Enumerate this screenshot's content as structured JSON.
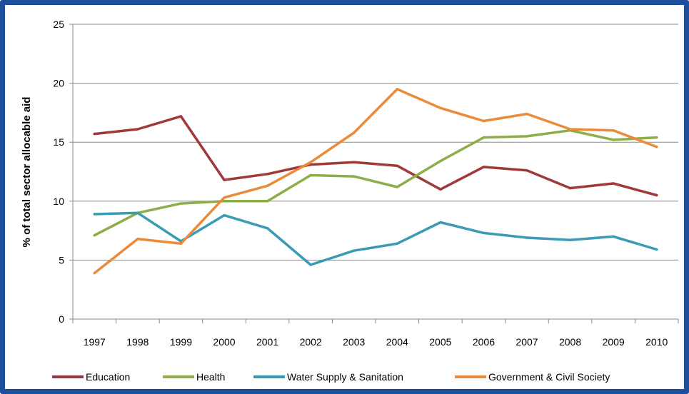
{
  "chart_data": {
    "type": "line",
    "title": "",
    "xlabel": "",
    "ylabel": "% of total sector allocable aid",
    "ylim": [
      0,
      25
    ],
    "yticks": [
      0,
      5,
      10,
      15,
      20,
      25
    ],
    "grid": "horizontal",
    "legend": "bottom",
    "x": [
      "1997",
      "1998",
      "1999",
      "2000",
      "2001",
      "2002",
      "2003",
      "2004",
      "2005",
      "2006",
      "2007",
      "2008",
      "2009",
      "2010"
    ],
    "series": [
      {
        "name": "Education",
        "color": "#a0393a",
        "values": [
          15.7,
          16.1,
          17.2,
          11.8,
          12.3,
          13.1,
          13.3,
          13.0,
          11.0,
          12.9,
          12.6,
          11.1,
          11.5,
          10.5
        ]
      },
      {
        "name": "Health",
        "color": "#8cad47",
        "values": [
          7.1,
          9.0,
          9.8,
          10.0,
          10.0,
          12.2,
          12.1,
          11.2,
          13.4,
          15.4,
          15.5,
          16.0,
          15.2,
          15.4
        ]
      },
      {
        "name": "Water Supply & Sanitation",
        "color": "#3b9bb4",
        "values": [
          8.9,
          9.0,
          6.6,
          8.8,
          7.7,
          4.6,
          5.8,
          6.4,
          8.2,
          7.3,
          6.9,
          6.7,
          7.0,
          5.9
        ]
      },
      {
        "name": "Government & Civil Society",
        "color": "#eb8b3a",
        "values": [
          3.9,
          6.8,
          6.4,
          10.3,
          11.3,
          13.3,
          15.8,
          19.5,
          17.9,
          16.8,
          17.4,
          16.1,
          16.0,
          14.6
        ]
      }
    ]
  }
}
